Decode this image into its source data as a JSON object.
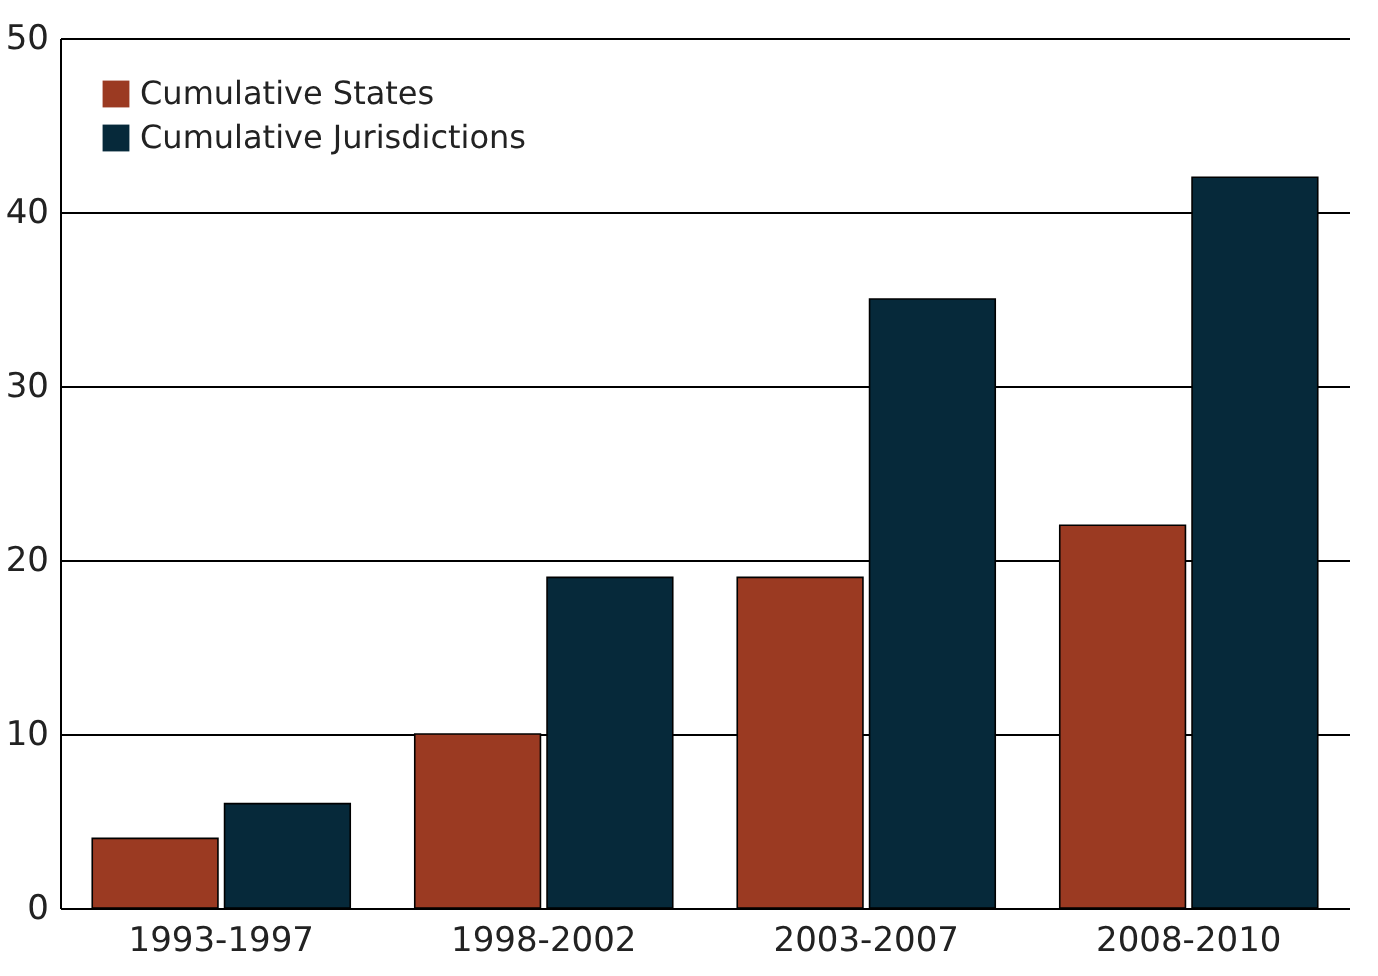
{
  "chart_data": {
    "type": "bar",
    "categories": [
      "1993-1997",
      "1998-2002",
      "2003-2007",
      "2008-2010"
    ],
    "series": [
      {
        "name": "Cumulative States",
        "color": "#9b3a22",
        "values": [
          4,
          10,
          19,
          22
        ]
      },
      {
        "name": "Cumulative Jurisdictions",
        "color": "#06293a",
        "values": [
          6,
          19,
          35,
          42
        ]
      }
    ],
    "ylim": [
      0,
      50
    ],
    "yticks": [
      0,
      10,
      20,
      30,
      40,
      50
    ],
    "grid": "y",
    "legend": "top left"
  }
}
